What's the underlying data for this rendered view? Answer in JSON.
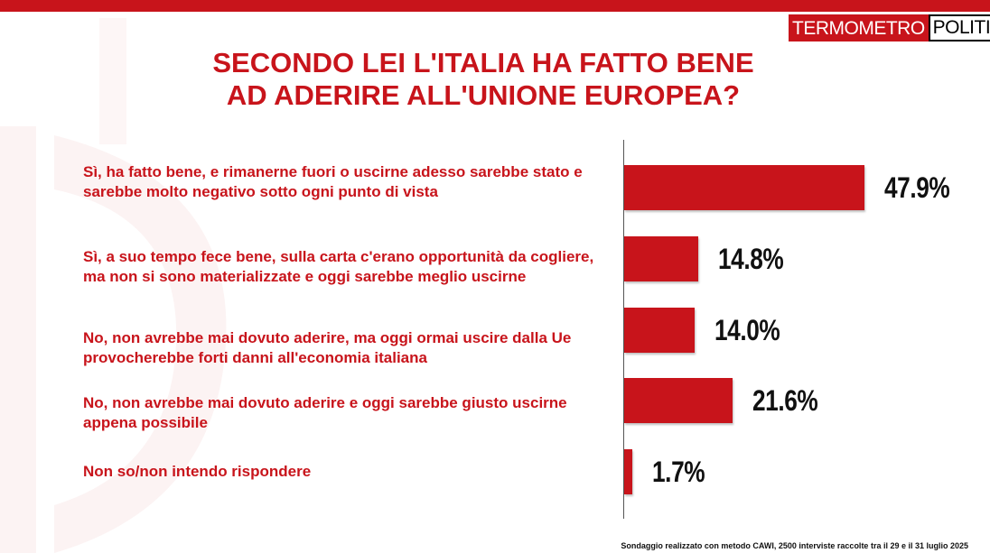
{
  "brand": {
    "part1": "TERMOMETRO",
    "part2": "POLITICO"
  },
  "title_lines": [
    "SECONDO LEI L'ITALIA HA FATTO BENE",
    "AD ADERIRE ALL'UNIONE EUROPEA?"
  ],
  "footnote": "Sondaggio realizzato con metodo CAWI, 2500 interviste raccolte tra il 29 e il 31 luglio 2025",
  "colors": {
    "accent": "#c8141b",
    "bar": "#c8141b",
    "value_text": "#111111"
  },
  "chart_data": {
    "type": "bar",
    "orientation": "horizontal",
    "title": "SECONDO LEI L'ITALIA HA FATTO BENE AD ADERIRE ALL'UNIONE EUROPEA?",
    "categories": [
      "Sì, ha fatto bene, e rimanerne fuori o uscirne adesso sarebbe stato e sarebbe molto negativo sotto ogni punto di vista",
      "Sì, a suo tempo fece bene, sulla carta c'erano opportunità da cogliere, ma non si sono materializzate e oggi sarebbe meglio uscirne",
      "No, non avrebbe mai dovuto aderire, ma oggi ormai uscire dalla Ue provocherebbe forti danni all'economia italiana",
      "No, non avrebbe mai dovuto aderire e oggi sarebbe giusto uscirne appena possibile",
      "Non so/non intendo rispondere"
    ],
    "values": [
      47.9,
      14.8,
      14.0,
      21.6,
      1.7
    ],
    "value_labels": [
      "47.9%",
      "14.8%",
      "14.0%",
      "21.6%",
      "1.7%"
    ],
    "unit": "%",
    "xlim": [
      0,
      50
    ],
    "grid": false,
    "legend": "none"
  }
}
